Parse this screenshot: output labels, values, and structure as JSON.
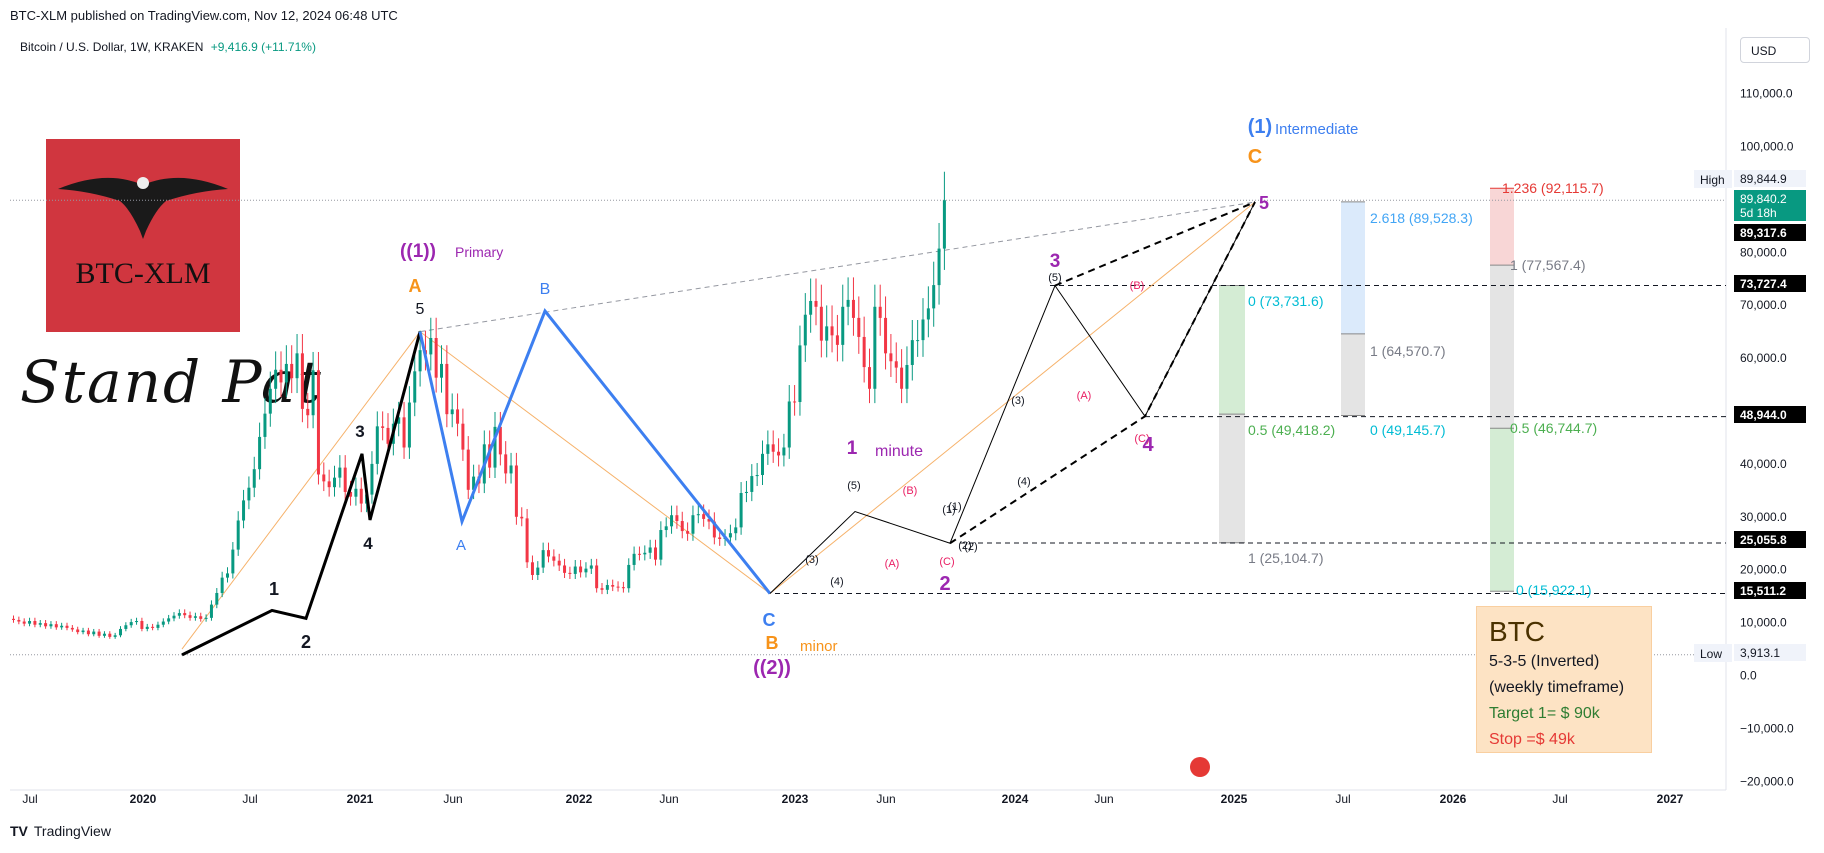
{
  "header": {
    "published": "BTC-XLM published on TradingView.com, Nov 12, 2024 06:48 UTC",
    "symbol": "Bitcoin / U.S. Dollar, 1W, KRAKEN",
    "change": "+9,416.9 (+11.71%)",
    "currency": "USD"
  },
  "logo": {
    "name": "BTC-XLM",
    "caption": "Stand Pat"
  },
  "footer": {
    "brand": "TradingView"
  },
  "note_box": {
    "title": "BTC",
    "line1": "5-3-5 (Inverted)",
    "line2": "(weekly timeframe)",
    "target": "Target 1= $ 90k",
    "stop": "Stop =$ 49k"
  },
  "colors": {
    "up": "#089981",
    "down": "#f23645",
    "blue": "#3d7ff0",
    "purple": "#9c27b0",
    "orange": "#f7931a",
    "teal": "#00bcd4",
    "green": "#4caf50",
    "red": "#e53935"
  },
  "chart_data": {
    "type": "candlestick",
    "title": "",
    "y_axis_labels": [
      "110,000.0",
      "100,000.0",
      "90,000.0",
      "80,000.0",
      "70,000.0",
      "60,000.0",
      "50,000.0",
      "40,000.0",
      "30,000.0",
      "20,000.0",
      "10,000.0",
      "0.0",
      "−10,000.0",
      "−20,000.0"
    ],
    "x_axis_labels": [
      "Jul",
      "2020",
      "Jul",
      "2021",
      "Jun",
      "2022",
      "Jun",
      "2023",
      "Jun",
      "2024",
      "Jun",
      "2025",
      "Jul",
      "2026",
      "Jul",
      "2027"
    ],
    "price_tags": [
      {
        "label": "High",
        "value": "89,844.9"
      },
      {
        "label": "",
        "value": "89,840.2"
      },
      {
        "label": "",
        "value": "5d 18h"
      },
      {
        "label": "",
        "value": "89,317.6"
      },
      {
        "label": "",
        "value": "73,727.4"
      },
      {
        "label": "",
        "value": "48,944.0"
      },
      {
        "label": "",
        "value": "25,055.8"
      },
      {
        "label": "",
        "value": "15,511.2"
      },
      {
        "label": "Low",
        "value": "3,913.1"
      }
    ],
    "fib_labels": [
      {
        "text": "1.236 (92,115.7)",
        "color": "#e53935"
      },
      {
        "text": "2.618 (89,528.3)",
        "color": "#42a5f5"
      },
      {
        "text": "1 (77,567.4)",
        "color": "#787b86"
      },
      {
        "text": "0 (73,731.6)",
        "color": "#00bcd4"
      },
      {
        "text": "1 (64,570.7)",
        "color": "#787b86"
      },
      {
        "text": "0.5 (49,418.2)",
        "color": "#4caf50"
      },
      {
        "text": "0 (49,145.7)",
        "color": "#00bcd4"
      },
      {
        "text": "0.5 (46,744.7)",
        "color": "#4caf50"
      },
      {
        "text": "1 (25,104.7)",
        "color": "#787b86"
      },
      {
        "text": "0 (15,922.1)",
        "color": "#00bcd4"
      }
    ],
    "wave_labels": [
      {
        "text": "(1)",
        "color": "#3d7ff0"
      },
      {
        "text": "Intermediate",
        "color": "#3d7ff0"
      },
      {
        "text": "C",
        "color": "#f7931a"
      },
      {
        "text": "5",
        "color": "#9c27b0"
      },
      {
        "text": "3",
        "color": "#9c27b0"
      },
      {
        "text": "(5)",
        "color": "#131722"
      },
      {
        "text": "(B)",
        "color": "#e91e63"
      },
      {
        "text": "(A)",
        "color": "#e91e63"
      },
      {
        "text": "(3)",
        "color": "#131722"
      },
      {
        "text": "(4)",
        "color": "#131722"
      },
      {
        "text": "(C)",
        "color": "#e91e63"
      },
      {
        "text": "4",
        "color": "#9c27b0"
      },
      {
        "text": "1",
        "color": "#9c27b0"
      },
      {
        "text": "minute",
        "color": "#9c27b0"
      },
      {
        "text": "(5)",
        "color": "#131722"
      },
      {
        "text": "(B)",
        "color": "#e91e63"
      },
      {
        "text": "(1)",
        "color": "#131722"
      },
      {
        "text": "(3)",
        "color": "#131722"
      },
      {
        "text": "(1)",
        "color": "#131722"
      },
      {
        "text": "(4)",
        "color": "#131722"
      },
      {
        "text": "(A)",
        "color": "#e91e63"
      },
      {
        "text": "(C)",
        "color": "#e91e63"
      },
      {
        "text": "(2)",
        "color": "#131722"
      },
      {
        "text": "2",
        "color": "#9c27b0"
      },
      {
        "text": "(2)",
        "color": "#131722"
      },
      {
        "text": "C",
        "color": "#3d7ff0"
      },
      {
        "text": "B",
        "color": "#f7931a"
      },
      {
        "text": "minor",
        "color": "#f7931a"
      },
      {
        "text": "((2))",
        "color": "#9c27b0"
      },
      {
        "text": "((1))",
        "color": "#9c27b0"
      },
      {
        "text": "Primary",
        "color": "#9c27b0"
      },
      {
        "text": "A",
        "color": "#f7931a"
      },
      {
        "text": "5",
        "color": "#131722"
      },
      {
        "text": "B",
        "color": "#3d7ff0"
      },
      {
        "text": "3",
        "color": "#131722"
      },
      {
        "text": "4",
        "color": "#131722"
      },
      {
        "text": "A",
        "color": "#3d7ff0"
      },
      {
        "text": "1",
        "color": "#131722"
      },
      {
        "text": "2",
        "color": "#131722"
      }
    ],
    "closes": [
      10500,
      10200,
      9800,
      10300,
      9600,
      9900,
      9300,
      9700,
      9100,
      9400,
      9000,
      8700,
      8200,
      8500,
      7800,
      8300,
      7500,
      7900,
      7300,
      7600,
      8800,
      9500,
      10100,
      10300,
      8800,
      9200,
      9000,
      9600,
      10200,
      10800,
      11300,
      11800,
      11400,
      10900,
      11200,
      10700,
      10900,
      13400,
      15600,
      18500,
      19300,
      23800,
      29300,
      33100,
      35500,
      39000,
      45100,
      49500,
      54200,
      57800,
      55400,
      58900,
      56200,
      60900,
      50400,
      49200,
      57700,
      38000,
      36700,
      35600,
      37400,
      39300,
      34700,
      33800,
      35300,
      32500,
      34200,
      40000,
      47100,
      46800,
      43800,
      47600,
      48800,
      43100,
      51600,
      57500,
      61500,
      60700,
      63800,
      56300,
      58900,
      49400,
      50300,
      47600,
      42700,
      35100,
      37600,
      36300,
      43700,
      39300,
      47000,
      41800,
      38200,
      39700,
      30000,
      29700,
      21400,
      19000,
      20400,
      23700,
      22500,
      21700,
      20800,
      19400,
      19200,
      20600,
      19500,
      20200,
      20800,
      16500,
      16200,
      17100,
      16800,
      16700,
      16500,
      20900,
      23000,
      22900,
      23200,
      24200,
      21900,
      27500,
      28200,
      30300,
      29200,
      27300,
      26800,
      30300,
      30500,
      29600,
      29100,
      26100,
      25800,
      26100,
      26900,
      28000,
      34500,
      34700,
      37700,
      37900,
      41900,
      43700,
      42300,
      41600,
      43100,
      51800,
      51700,
      62400,
      68200,
      70800,
      69700,
      63300,
      66000,
      64300,
      62500,
      69700,
      71000,
      67600,
      64000,
      58300,
      54200,
      69700,
      67600,
      60900,
      59400,
      58200,
      54200,
      58700,
      63400,
      63400,
      67300,
      69400,
      73800,
      80700,
      89840
    ]
  }
}
